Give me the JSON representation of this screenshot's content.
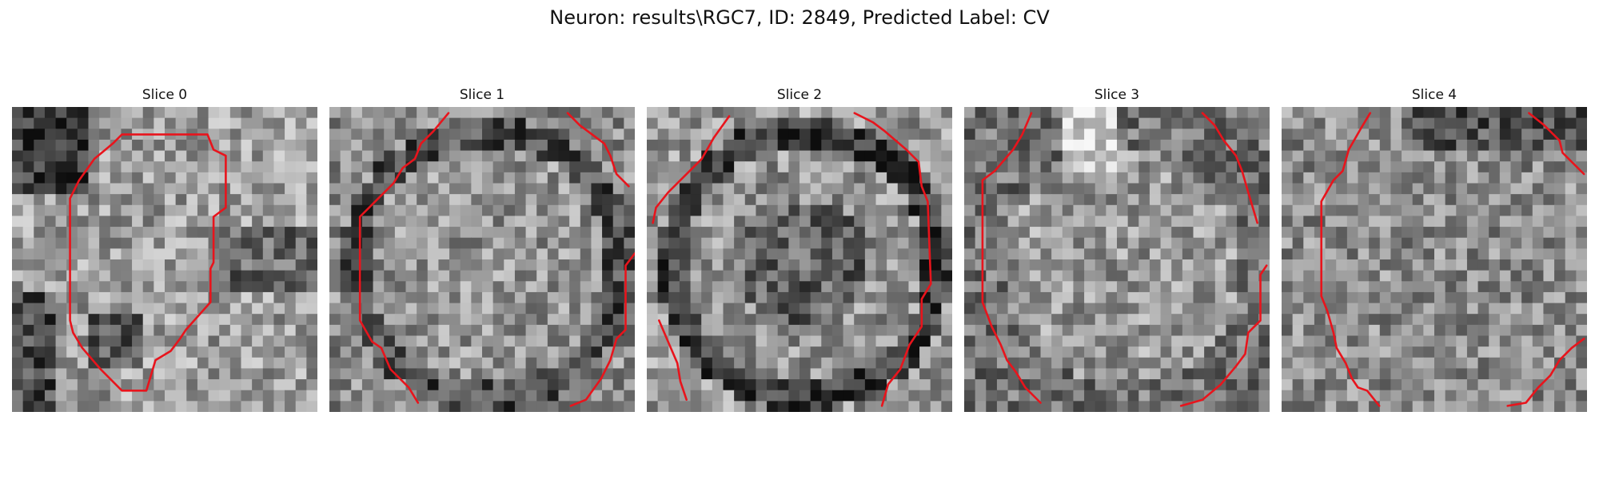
{
  "figure": {
    "title": "Neuron: results\\RGC7, ID: 2849, Predicted Label: CV"
  },
  "image_description": {
    "colormap": "grayscale",
    "contour_color": "#e8141c"
  },
  "slices": [
    {
      "title": "Slice 0"
    },
    {
      "title": "Slice 1"
    },
    {
      "title": "Slice 2"
    },
    {
      "title": "Slice 3"
    },
    {
      "title": "Slice 4"
    }
  ]
}
